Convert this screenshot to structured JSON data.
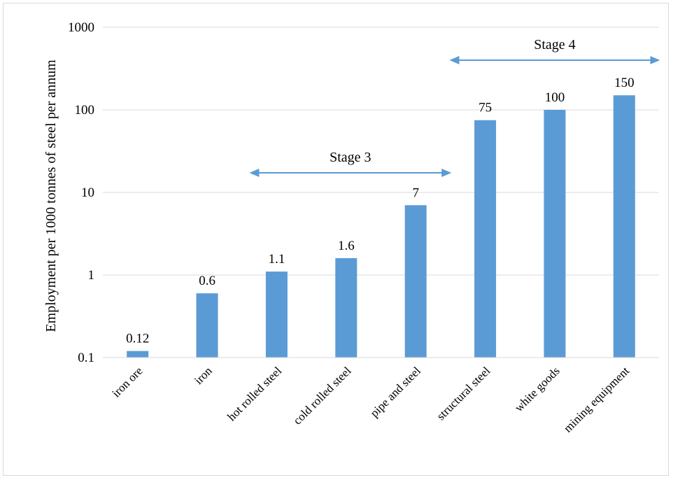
{
  "chart_data": {
    "type": "bar",
    "categories": [
      "iron ore",
      "iron",
      "hot rolled steel",
      "cold rolled steel",
      "pipe and steel",
      "structural steel",
      "white goods",
      "mining equipment"
    ],
    "values": [
      0.12,
      0.6,
      1.1,
      1.6,
      7,
      75,
      100,
      150
    ],
    "data_labels": [
      "0.12",
      "0.6",
      "1.1",
      "1.6",
      "7",
      "75",
      "100",
      "150"
    ],
    "ylabel": "Employment per 1000 tonnes of steel per annum",
    "y_scale": "log",
    "ylim": [
      0.1,
      1000
    ],
    "y_ticks": [
      {
        "value": 0.1,
        "label": "0.1"
      },
      {
        "value": 1,
        "label": "1"
      },
      {
        "value": 10,
        "label": "10"
      },
      {
        "value": 100,
        "label": "100"
      },
      {
        "value": 1000,
        "label": "1000"
      }
    ],
    "grid": true,
    "bar_color": "#5b9bd5",
    "annotations": [
      {
        "label": "Stage 3",
        "from_category": "hot rolled steel",
        "to_category": "pipe and steel"
      },
      {
        "label": "Stage 4",
        "from_category": "structural steel",
        "to_category": "mining equipment"
      }
    ]
  }
}
